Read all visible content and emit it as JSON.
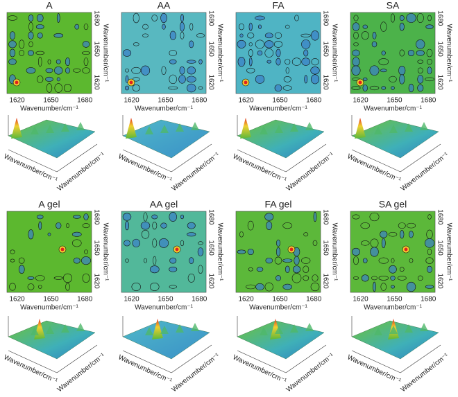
{
  "panels": [
    {
      "title": "A",
      "xticks": [
        "1620",
        "1650",
        "1680"
      ],
      "yticks": [
        "1680",
        "1650",
        "1620"
      ],
      "xlabel": "Wavenumber/cm⁻¹",
      "ylabel": "Wavenumber/cm⁻¹",
      "surface_labels": [
        "Wavenumber/cm⁻¹",
        "Wavenumber/cm⁻¹"
      ]
    },
    {
      "title": "AA",
      "xticks": [
        "1620",
        "1650",
        "1680"
      ],
      "yticks": [
        "1680",
        "1650",
        "1620"
      ],
      "xlabel": "Wavenumber/cm⁻¹",
      "ylabel": "Wavenumber/cm⁻¹",
      "surface_labels": [
        "Wavenumber/cm⁻¹",
        "Wavenumber/cm⁻¹"
      ]
    },
    {
      "title": "FA",
      "xticks": [
        "1620",
        "1650",
        "1680"
      ],
      "yticks": [
        "1680",
        "1650",
        "1620"
      ],
      "xlabel": "Wavenumber/cm⁻¹",
      "ylabel": "Wavenumber/cm⁻¹",
      "surface_labels": [
        "Wavenumber/cm⁻¹",
        "Wavenumber/cm⁻¹"
      ]
    },
    {
      "title": "SA",
      "xticks": [
        "1620",
        "1650",
        "1680"
      ],
      "yticks": [
        "1680",
        "1650",
        "1620"
      ],
      "xlabel": "Wavenumber/cm⁻¹",
      "ylabel": "Wavenumber/cm⁻¹",
      "surface_labels": [
        "Wavenumber/cm⁻¹",
        "Wavenumber/cm⁻¹"
      ]
    },
    {
      "title": "A gel",
      "xticks": [
        "1620",
        "1650",
        "1680"
      ],
      "yticks": [
        "1680",
        "1650",
        "1620"
      ],
      "xlabel": "Wavenumber/cm⁻¹",
      "ylabel": "Wavenumber/cm⁻¹",
      "surface_labels": [
        "Wavenumber/cm⁻¹",
        "Wavenumber/cm⁻¹"
      ]
    },
    {
      "title": "AA gel",
      "xticks": [
        "1620",
        "1650",
        "1680"
      ],
      "yticks": [
        "1680",
        "1650",
        "1620"
      ],
      "xlabel": "Wavenumber/cm⁻¹",
      "ylabel": "Wavenumber/cm⁻¹",
      "surface_labels": [
        "Wavenumber/cm⁻¹",
        "Wavenumber/cm⁻¹"
      ]
    },
    {
      "title": "FA gel",
      "xticks": [
        "1620",
        "1650",
        "1680"
      ],
      "yticks": [
        "1680",
        "1650",
        "1620"
      ],
      "xlabel": "Wavenumber/cm⁻¹",
      "ylabel": "Wavenumber/cm⁻¹",
      "surface_labels": [
        "Wavenumber/cm⁻¹",
        "Wavenumber/cm⁻¹"
      ]
    },
    {
      "title": "SA gel",
      "xticks": [
        "1620",
        "1650",
        "1680"
      ],
      "yticks": [
        "1680",
        "1650",
        "1620"
      ],
      "xlabel": "Wavenumber/cm⁻¹",
      "ylabel": "Wavenumber/cm⁻¹",
      "surface_labels": [
        "Wavenumber/cm⁻¹",
        "Wavenumber/cm⁻¹"
      ]
    }
  ]
}
